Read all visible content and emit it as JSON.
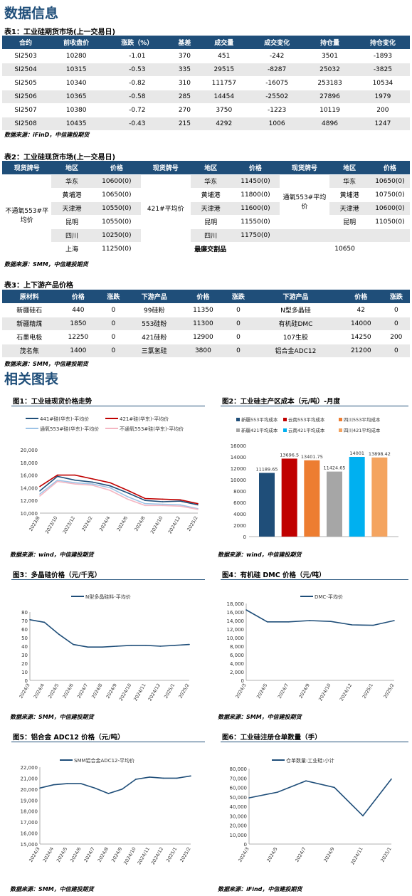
{
  "section1_title": "数据信息",
  "table1": {
    "title": "表1：工业硅期货市场(上一交易日)",
    "headers": [
      "合约",
      "前收盘价",
      "涨跌（%）",
      "基差",
      "成交量",
      "成交变化",
      "持仓量",
      "持仓变化"
    ],
    "rows": [
      [
        "SI2503",
        "10280",
        "-1.01",
        "370",
        "451",
        "-242",
        "3501",
        "-1893"
      ],
      [
        "SI2504",
        "10315",
        "-0.53",
        "335",
        "29515",
        "-8287",
        "25032",
        "-3825"
      ],
      [
        "SI2505",
        "10340",
        "-0.82",
        "310",
        "111757",
        "-16075",
        "253183",
        "10534"
      ],
      [
        "SI2506",
        "10365",
        "-0.58",
        "285",
        "14454",
        "-25502",
        "27896",
        "1979"
      ],
      [
        "SI2507",
        "10380",
        "-0.72",
        "270",
        "3750",
        "-1223",
        "10119",
        "200"
      ],
      [
        "SI2508",
        "10435",
        "-0.43",
        "215",
        "4292",
        "1006",
        "4896",
        "1247"
      ]
    ],
    "source": "数据来源：iFinD，中信建投期货"
  },
  "table2": {
    "title": "表2：工业硅现货市场(上一交易日)",
    "headers": [
      "现货牌号",
      "地区",
      "价格",
      "现货牌号",
      "地区",
      "价格",
      "现货牌号",
      "地区",
      "价格"
    ],
    "grade1": "不通氧553#平均价",
    "grade1_rows": [
      [
        "华东",
        "10600(0)"
      ],
      [
        "黄埔港",
        "10650(0)"
      ],
      [
        "天津港",
        "10550(0)"
      ],
      [
        "昆明",
        "10550(0)"
      ],
      [
        "四川",
        "10250(0)"
      ],
      [
        "上海",
        "11250(0)"
      ]
    ],
    "grade2": "421#平均价",
    "grade2_rows": [
      [
        "华东",
        "11450(0)"
      ],
      [
        "黄埔港",
        "11800(0)"
      ],
      [
        "天津港",
        "11600(0)"
      ],
      [
        "昆明",
        "11550(0)"
      ],
      [
        "四川",
        "11750(0)"
      ]
    ],
    "grade3": "通氧553#平均价",
    "grade3_rows": [
      [
        "华东",
        "10650(0)"
      ],
      [
        "黄埔港",
        "10750(0)"
      ],
      [
        "天津港",
        "10600(0)"
      ],
      [
        "昆明",
        "11050(0)"
      ]
    ],
    "cheapest_label": "最廉交割品",
    "cheapest_value": "10650",
    "source": "数据来源：SMM，中信建投期货"
  },
  "table3": {
    "title": "表3：上下游产品价格",
    "headers": [
      "原材料",
      "价格",
      "涨跌",
      "下游产品",
      "价格",
      "涨跌",
      "下游产品",
      "价格",
      "涨跌"
    ],
    "rows": [
      [
        "新疆硅石",
        "440",
        "0",
        "99硅粉",
        "11350",
        "0",
        "N型多晶硅",
        "42",
        "0"
      ],
      [
        "新疆精煤",
        "1850",
        "0",
        "553硅粉",
        "11300",
        "0",
        "有机硅DMC",
        "14000",
        "0"
      ],
      [
        "石墨电极",
        "12250",
        "0",
        "421硅粉",
        "12900",
        "0",
        "107生胶",
        "14250",
        "200"
      ],
      [
        "茂名焦",
        "1400",
        "0",
        "三氯氢硅",
        "3800",
        "0",
        "铝合金ADC12",
        "21200",
        "0"
      ]
    ],
    "source": "数据来源：SMM，中信建投期货"
  },
  "section2_title": "相关图表",
  "charts": {
    "c1": {
      "title": "图1：工业硅现货价格走势",
      "legend": [
        "441#硅(华东)-平均价",
        "421#硅(华东)-平均价",
        "通氧553#硅(华东)-平均价",
        "不通氧553#硅(华东)-平均价"
      ],
      "colors": [
        "#1f4e79",
        "#c00000",
        "#9dc3e6",
        "#f4b6c2"
      ],
      "yticks": [
        "20,000",
        "18,000",
        "16,000",
        "14,000",
        "12,000",
        "10,000"
      ],
      "xticks": [
        "2023/8",
        "2023/10",
        "2023/12",
        "2024/2",
        "2024/4",
        "2024/6",
        "2024/8",
        "2024/10",
        "2024/12",
        "2025/2"
      ],
      "source": "数据来源：wind，中信建投期货"
    },
    "c2": {
      "title": "图2：工业硅主产区成本（元/吨）-月度",
      "legend": [
        "新疆553平均成本",
        "云南553平均成本",
        "四川553平均成本",
        "新疆421平均成本",
        "云南421平均成本",
        "四川421平均成本"
      ],
      "colors": [
        "#1f4e79",
        "#c00000",
        "#ed7d31",
        "#a6a6a6",
        "#00b0f0",
        "#f4a460"
      ],
      "yticks": [
        "16000",
        "14000",
        "12000",
        "10000",
        "8000",
        "6000",
        "4000",
        "2000",
        "0"
      ],
      "source": "数据来源：wind，中信建投期货"
    },
    "c3": {
      "title": "图3：多晶硅价格（元/千克）",
      "legend": [
        "N型多晶硅料-平均价"
      ],
      "yticks": [
        "80",
        "70",
        "60",
        "50",
        "40",
        "30",
        "20",
        "10",
        "0"
      ],
      "xticks": [
        "2024/3",
        "2024/4",
        "2024/5",
        "2024/6",
        "2024/7",
        "2024/8",
        "2024/9",
        "2024/10",
        "2024/11",
        "2024/12",
        "2025/1",
        "2025/2"
      ],
      "source": "数据来源：SMM，中信建投期货"
    },
    "c4": {
      "title": "图4：有机硅 DMC 价格（元/吨）",
      "legend": [
        "DMC-平均价"
      ],
      "yticks": [
        "18,000",
        "16,000",
        "14,000",
        "12,000",
        "10,000",
        "8,000",
        "6,000",
        "4,000",
        "2,000",
        "0"
      ],
      "xticks": [
        "2024/3",
        "2024/5",
        "2024/7",
        "2024/9",
        "2024/10",
        "2024/12",
        "2025/1",
        "2025/2"
      ],
      "source": "数据来源：SMM，中信建投期货"
    },
    "c5": {
      "title": "图5：铝合金 ADC12 价格（元/吨）",
      "legend": [
        "SMM铝合金ADC12-平均价"
      ],
      "yticks": [
        "22,000",
        "21,000",
        "20,000",
        "19,000",
        "18,000",
        "17,000",
        "16,000",
        "15,000"
      ],
      "xticks": [
        "2024/3",
        "2024/4",
        "2024/5",
        "2024/6",
        "2024/7",
        "2024/8",
        "2024/9",
        "2024/10",
        "2024/11",
        "2024/12",
        "2025/1",
        "2025/2"
      ],
      "source": "数据来源：SMM，中信建投期货"
    },
    "c6": {
      "title": "图6：工业硅注册仓单数量（手）",
      "legend": [
        "仓单数量:工业硅:小计"
      ],
      "yticks": [
        "80,000",
        "70,000",
        "60,000",
        "50,000",
        "40,000",
        "30,000",
        "20,000",
        "10,000",
        "0"
      ],
      "xticks": [
        "2024/3",
        "2024/5",
        "2024/7",
        "2024/9",
        "2024/11",
        "2025/1"
      ],
      "source": "数据来源：iFind，中信建投期货"
    }
  },
  "chart_data": [
    {
      "type": "line",
      "title": "图1：工业硅现货价格走势",
      "ylim": [
        10000,
        20000
      ],
      "x": [
        "2023/8",
        "2023/10",
        "2023/12",
        "2024/2",
        "2024/4",
        "2024/6",
        "2024/8",
        "2024/10",
        "2024/12",
        "2025/2"
      ],
      "series": [
        {
          "name": "441#硅(华东)-平均价",
          "values": [
            13500,
            15800,
            15200,
            14900,
            14300,
            13200,
            12000,
            11800,
            11900,
            11300
          ]
        },
        {
          "name": "421#硅(华东)-平均价",
          "values": [
            14200,
            16000,
            16000,
            15400,
            14800,
            13600,
            12300,
            12200,
            12100,
            11500
          ]
        },
        {
          "name": "通氧553#硅(华东)-平均价",
          "values": [
            13000,
            15200,
            14800,
            14600,
            14000,
            12600,
            11500,
            11400,
            11300,
            10700
          ]
        },
        {
          "name": "不通氧553#硅(华东)-平均价",
          "values": [
            12700,
            15000,
            14600,
            14400,
            13600,
            12200,
            11200,
            11200,
            11100,
            10600
          ]
        }
      ]
    },
    {
      "type": "bar",
      "title": "图2：工业硅主产区成本（元/吨）-月度",
      "ylim": [
        0,
        16000
      ],
      "categories": [
        "新疆553平均成本",
        "云南553平均成本",
        "四川553平均成本",
        "新疆421平均成本",
        "云南421平均成本",
        "四川421平均成本"
      ],
      "values": [
        11189.65,
        13696.5,
        13401.75,
        11424.65,
        14001,
        13898.42
      ],
      "labels": [
        "11189.65",
        "13696.5",
        "13401.75",
        "11424.65",
        "14001",
        "13898.42"
      ]
    },
    {
      "type": "line",
      "title": "图3：多晶硅价格（元/千克）",
      "ylim": [
        0,
        80
      ],
      "x": [
        "2024/3",
        "2024/4",
        "2024/5",
        "2024/6",
        "2024/7",
        "2024/8",
        "2024/9",
        "2024/10",
        "2024/11",
        "2024/12",
        "2025/1",
        "2025/2"
      ],
      "series": [
        {
          "name": "N型多晶硅料-平均价",
          "values": [
            71,
            68,
            54,
            42,
            39,
            39,
            40,
            41,
            41,
            40,
            41,
            42
          ]
        }
      ]
    },
    {
      "type": "line",
      "title": "图4：有机硅 DMC 价格（元/吨）",
      "ylim": [
        0,
        18000
      ],
      "x": [
        "2024/3",
        "2024/5",
        "2024/7",
        "2024/9",
        "2024/10",
        "2024/12",
        "2025/1",
        "2025/2"
      ],
      "series": [
        {
          "name": "DMC-平均价",
          "values": [
            16500,
            13700,
            13700,
            14000,
            13800,
            13000,
            12900,
            14000
          ]
        }
      ]
    },
    {
      "type": "line",
      "title": "图5：铝合金 ADC12 价格（元/吨）",
      "ylim": [
        15000,
        22000
      ],
      "x": [
        "2024/3",
        "2024/4",
        "2024/5",
        "2024/6",
        "2024/7",
        "2024/8",
        "2024/9",
        "2024/10",
        "2024/11",
        "2024/12",
        "2025/1",
        "2025/2"
      ],
      "series": [
        {
          "name": "SMM铝合金ADC12-平均价",
          "values": [
            20100,
            20400,
            20500,
            20500,
            20100,
            19600,
            20000,
            20900,
            21100,
            21000,
            21000,
            21200
          ]
        }
      ]
    },
    {
      "type": "line",
      "title": "图6：工业硅注册仓单数量（手）",
      "ylim": [
        0,
        80000
      ],
      "x": [
        "2024/3",
        "2024/5",
        "2024/7",
        "2024/9",
        "2024/11",
        "2025/1"
      ],
      "series": [
        {
          "name": "仓单数量:工业硅:小计",
          "values": [
            49000,
            55000,
            67000,
            60000,
            30000,
            69000
          ]
        }
      ]
    }
  ]
}
